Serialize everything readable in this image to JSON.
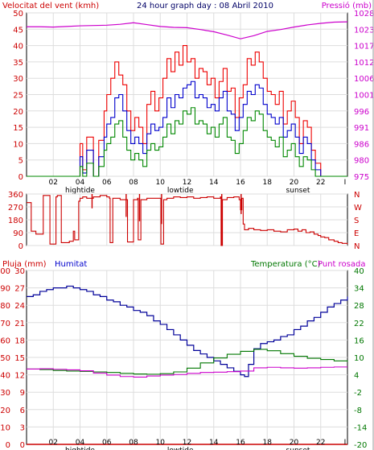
{
  "header": {
    "wind_label": "Velocitat del vent (kmh)",
    "title": "24 hour graph day : 08 Abril 2010",
    "pressure_label": "Pressió (mb)"
  },
  "footer_labels": {
    "pluja": "Pluja (mm)",
    "humitat": "Humitat",
    "temperatura": "Temperatura (°C)",
    "punt_rosada": "Punt rosada"
  },
  "time_ticks": [
    "02",
    "04",
    "06",
    "08",
    "10",
    "12",
    "14",
    "16",
    "18",
    "20",
    "22"
  ],
  "time_end_mark": "I",
  "top_event_labels": {
    "hightide": "hightide",
    "lowtide": "lowtide",
    "sunset": "sunset"
  },
  "bottom_event_labels": {
    "hightide": "hightide",
    "lowtide": "lowtide",
    "sunset": "sunset"
  },
  "compass": [
    "N",
    "W",
    "S",
    "E",
    "N"
  ],
  "colors": {
    "wind_gust": "#ee0000",
    "wind_avg": "#0000cc",
    "wind_green": "#008800",
    "pressure": "#cc00cc",
    "direction": "#cc0000",
    "humidity": "#000099",
    "temperature": "#007700",
    "dewpoint": "#cc00cc",
    "rain": "#cc0000",
    "axis_red": "#cc0000",
    "axis_magenta": "#cc00cc",
    "axis_blue": "#0000cc",
    "axis_green": "#007700",
    "grid": "#dddddd"
  },
  "chart_data": [
    {
      "type": "line",
      "title": "24 hour graph day : 08 Abril 2010",
      "x_unit": "hour",
      "xlim": [
        0,
        24
      ],
      "ylabel_left": "Velocitat del vent (kmh)",
      "ylim_left": [
        0,
        50
      ],
      "yticks_left": [
        "0",
        "5",
        "10",
        "15",
        "20",
        "25",
        "30",
        "35",
        "40",
        "45",
        "50"
      ],
      "ylabel_right": "Pressió (mb)",
      "ylim_right": [
        975,
        1028
      ],
      "yticks_right": [
        "975",
        "980",
        "986",
        "991",
        "996",
        "1001",
        "1006",
        "1012",
        "1017",
        "1023",
        "1028"
      ],
      "series": [
        {
          "key": "gust",
          "axis": "left",
          "x": [
            0,
            2,
            3.8,
            4.0,
            4.2,
            4.5,
            5.0,
            5.4,
            5.8,
            6.0,
            6.3,
            6.6,
            6.9,
            7.2,
            7.5,
            7.8,
            8.1,
            8.4,
            8.7,
            9.0,
            9.3,
            9.6,
            9.9,
            10.2,
            10.5,
            10.8,
            11.1,
            11.4,
            11.7,
            12.0,
            12.3,
            12.6,
            12.9,
            13.2,
            13.5,
            13.8,
            14.1,
            14.4,
            14.7,
            15.0,
            15.3,
            15.6,
            15.9,
            16.2,
            16.5,
            16.8,
            17.1,
            17.4,
            17.7,
            18.0,
            18.3,
            18.6,
            18.9,
            19.2,
            19.5,
            19.8,
            20.1,
            20.4,
            20.7,
            21.0,
            21.3,
            21.6,
            22.0,
            24
          ],
          "values": [
            0,
            0,
            0,
            10,
            2,
            12,
            0,
            11,
            20,
            25,
            30,
            35,
            31,
            28,
            20,
            14,
            18,
            15,
            10,
            22,
            26,
            20,
            24,
            30,
            36,
            32,
            38,
            34,
            40,
            35,
            36,
            30,
            33,
            32,
            28,
            30,
            24,
            29,
            33,
            26,
            27,
            18,
            24,
            28,
            36,
            34,
            38,
            35,
            30,
            26,
            25,
            22,
            26,
            16,
            20,
            23,
            18,
            10,
            17,
            15,
            8,
            4,
            0,
            0
          ]
        },
        {
          "key": "average",
          "axis": "left",
          "x": [
            0,
            2,
            3.8,
            4.0,
            4.2,
            4.5,
            5.0,
            5.4,
            5.8,
            6.0,
            6.3,
            6.6,
            6.9,
            7.2,
            7.5,
            7.8,
            8.1,
            8.4,
            8.7,
            9.0,
            9.3,
            9.6,
            9.9,
            10.2,
            10.5,
            10.8,
            11.1,
            11.4,
            11.7,
            12.0,
            12.3,
            12.6,
            12.9,
            13.2,
            13.5,
            13.8,
            14.1,
            14.4,
            14.7,
            15.0,
            15.3,
            15.6,
            15.9,
            16.2,
            16.5,
            16.8,
            17.1,
            17.4,
            17.7,
            18.0,
            18.3,
            18.6,
            18.9,
            19.2,
            19.5,
            19.8,
            20.1,
            20.4,
            20.7,
            21.0,
            21.3,
            21.6,
            22.0,
            24
          ],
          "values": [
            0,
            0,
            0,
            6,
            1,
            8,
            0,
            6,
            12,
            16,
            18,
            24,
            25,
            20,
            14,
            10,
            12,
            10,
            7,
            13,
            16,
            14,
            15,
            18,
            24,
            21,
            25,
            24,
            27,
            28,
            29,
            24,
            25,
            24,
            21,
            22,
            20,
            24,
            26,
            20,
            19,
            14,
            18,
            22,
            26,
            25,
            28,
            27,
            22,
            19,
            18,
            16,
            18,
            12,
            14,
            16,
            12,
            7,
            12,
            10,
            5,
            2,
            0,
            0
          ]
        },
        {
          "key": "green",
          "axis": "left",
          "x": [
            0,
            2,
            3.8,
            4.0,
            4.2,
            4.5,
            5.0,
            5.4,
            5.8,
            6.0,
            6.3,
            6.6,
            6.9,
            7.2,
            7.5,
            7.8,
            8.1,
            8.4,
            8.7,
            9.0,
            9.3,
            9.6,
            9.9,
            10.2,
            10.5,
            10.8,
            11.1,
            11.4,
            11.7,
            12.0,
            12.3,
            12.6,
            12.9,
            13.2,
            13.5,
            13.8,
            14.1,
            14.4,
            14.7,
            15.0,
            15.3,
            15.6,
            15.9,
            16.2,
            16.5,
            16.8,
            17.1,
            17.4,
            17.7,
            18.0,
            18.3,
            18.6,
            18.9,
            19.2,
            19.5,
            19.8,
            20.1,
            20.4,
            20.7,
            21.0,
            21.3,
            21.6,
            22.0,
            24
          ],
          "values": [
            0,
            0,
            0,
            3,
            0,
            4,
            0,
            3,
            8,
            10,
            12,
            16,
            17,
            12,
            8,
            5,
            7,
            5,
            3,
            8,
            10,
            8,
            9,
            12,
            16,
            13,
            17,
            16,
            20,
            19,
            21,
            16,
            17,
            16,
            13,
            15,
            12,
            16,
            18,
            12,
            11,
            7,
            10,
            14,
            18,
            17,
            20,
            19,
            14,
            12,
            11,
            9,
            12,
            6,
            8,
            10,
            6,
            3,
            6,
            5,
            2,
            0,
            0,
            0
          ]
        },
        {
          "key": "pressure",
          "axis": "right",
          "x": [
            0,
            1,
            2,
            3,
            4,
            5,
            6,
            7,
            8,
            9,
            10,
            11,
            12,
            13,
            14,
            15,
            16,
            17,
            18,
            19,
            20,
            21,
            22,
            23,
            24
          ],
          "values": [
            1023.5,
            1023.5,
            1023.4,
            1023.6,
            1023.8,
            1023.9,
            1024.0,
            1024.3,
            1024.8,
            1024.2,
            1023.6,
            1023.3,
            1023.2,
            1022.6,
            1021.9,
            1020.8,
            1019.6,
            1020.6,
            1022.0,
            1022.6,
            1023.4,
            1024.1,
            1024.6,
            1025.0,
            1025.1
          ]
        }
      ],
      "annotations": [
        "hightide",
        "lowtide",
        "sunset"
      ]
    },
    {
      "type": "line",
      "x_unit": "hour",
      "xlim": [
        0,
        24
      ],
      "ylim": [
        0,
        360
      ],
      "yticks": [
        "0",
        "90",
        "180",
        "270",
        "360"
      ],
      "yticks_right": [
        "N",
        "W",
        "S",
        "E",
        "N"
      ],
      "series": [
        {
          "key": "direction",
          "x": [
            0,
            0.3,
            0.35,
            0.7,
            1.0,
            1.2,
            1.25,
            1.4,
            1.7,
            1.75,
            2.2,
            2.3,
            2.4,
            2.6,
            2.65,
            3.0,
            3.2,
            3.5,
            3.6,
            3.9,
            4.0,
            4.2,
            4.5,
            5.0,
            5.5,
            6.0,
            6.2,
            6.25,
            6.4,
            6.45,
            7.0,
            7.5,
            7.55,
            8.0,
            8.3,
            8.35,
            8.5,
            8.55,
            9.0,
            9.5,
            10.0,
            10.05,
            10.2,
            10.25,
            10.5,
            11.0,
            11.5,
            12.0,
            12.5,
            13.0,
            13.5,
            14.0,
            14.5,
            14.55,
            14.6,
            14.65,
            15.0,
            15.5,
            15.9,
            16.0,
            16.1,
            16.2,
            16.3,
            16.6,
            17.0,
            17.5,
            18.0,
            18.5,
            19.0,
            19.5,
            20.0,
            20.3,
            20.6,
            20.9,
            21.2,
            21.5,
            21.8,
            22.0,
            22.3,
            22.6,
            23.0,
            23.3,
            23.6,
            24
          ],
          "values": [
            300,
            300,
            100,
            80,
            80,
            80,
            350,
            350,
            350,
            10,
            340,
            350,
            350,
            20,
            20,
            20,
            30,
            100,
            40,
            310,
            330,
            340,
            330,
            340,
            350,
            340,
            330,
            20,
            20,
            330,
            320,
            320,
            25,
            320,
            330,
            40,
            40,
            320,
            330,
            330,
            330,
            10,
            10,
            320,
            330,
            340,
            335,
            340,
            330,
            335,
            340,
            330,
            340,
            0,
            0,
            320,
            335,
            340,
            320,
            250,
            330,
            150,
            110,
            120,
            110,
            105,
            110,
            100,
            95,
            110,
            115,
            100,
            110,
            90,
            95,
            80,
            70,
            60,
            55,
            40,
            30,
            20,
            15,
            10
          ]
        },
        {
          "key": "direction_spikes",
          "x": [
            4.9,
            7.45,
            8.45,
            10.1,
            14.6,
            16.05
          ],
          "values": [
            260,
            200,
            170,
            150,
            0,
            220
          ]
        }
      ]
    },
    {
      "type": "line",
      "x_unit": "hour",
      "xlim": [
        0,
        24
      ],
      "ylabel_left": "Pluja (mm)",
      "ylim_left": [
        0,
        100
      ],
      "yticks_left": [
        "0",
        "10",
        "20",
        "30",
        "40",
        "50",
        "60",
        "70",
        "80",
        "90",
        "100"
      ],
      "ylabel_left2": "Humitat",
      "yticks_left2": [
        "0",
        "3",
        "6",
        "9",
        "12",
        "15",
        "18",
        "21",
        "24",
        "27",
        "30"
      ],
      "ylabel_right": "Temperatura (°C)",
      "ylabel_right2": "Punt rosada",
      "ylim_right": [
        -20,
        40
      ],
      "yticks_right": [
        "-20",
        "-14",
        "-8",
        "-2",
        "4",
        "10",
        "16",
        "22",
        "28",
        "34",
        "40"
      ],
      "series": [
        {
          "key": "humidity",
          "axis": "left",
          "x": [
            0,
            0.5,
            1,
            1.5,
            2,
            2.5,
            3,
            3.5,
            4,
            4.5,
            5,
            5.5,
            6,
            6.5,
            7,
            7.5,
            8,
            8.5,
            9,
            9.5,
            10,
            10.5,
            11,
            11.5,
            12,
            12.5,
            13,
            13.5,
            14,
            14.5,
            15,
            15.5,
            16,
            16.3,
            16.6,
            17,
            17.5,
            18,
            18.5,
            19,
            19.5,
            20,
            20.5,
            21,
            21.5,
            22,
            22.5,
            23,
            23.5,
            24
          ],
          "values": [
            85,
            86,
            88,
            89,
            90,
            90,
            91,
            90,
            89,
            88,
            86,
            85,
            83,
            82,
            80,
            79,
            77,
            76,
            74,
            71,
            69,
            66,
            63,
            60,
            57,
            54,
            52,
            50,
            48,
            46,
            44,
            42,
            40,
            39,
            46,
            55,
            58,
            59,
            60,
            62,
            63,
            66,
            68,
            71,
            73,
            76,
            79,
            81,
            83,
            85
          ]
        },
        {
          "key": "temperature",
          "axis": "right",
          "x": [
            0,
            1,
            2,
            3,
            4,
            5,
            6,
            7,
            8,
            9,
            10,
            11,
            12,
            13,
            14,
            15,
            16,
            17,
            18,
            19,
            20,
            21,
            22,
            23,
            24
          ],
          "values": [
            6,
            5.8,
            5.5,
            5.3,
            5.2,
            5.0,
            4.8,
            4.5,
            4.3,
            4.2,
            4.4,
            5,
            6.3,
            8.1,
            9.8,
            11.1,
            12.1,
            12.8,
            12.3,
            11.3,
            10.4,
            9.7,
            9.3,
            8.8,
            8.5
          ]
        },
        {
          "key": "dewpoint",
          "axis": "right",
          "x": [
            0,
            1,
            2,
            3,
            4,
            5,
            6,
            7,
            8,
            9,
            10,
            11,
            12,
            13,
            14,
            15,
            16,
            17,
            18,
            19,
            20,
            21,
            22,
            23,
            24
          ],
          "values": [
            6.0,
            6.1,
            5.9,
            5.7,
            5.4,
            4.6,
            3.9,
            3.4,
            3.2,
            3.6,
            3.9,
            4.1,
            4.5,
            4.8,
            4.9,
            5.1,
            5.3,
            6.4,
            6.6,
            6.4,
            6.3,
            6.4,
            6.6,
            6.7,
            6.7
          ]
        },
        {
          "key": "rain",
          "axis": "left",
          "x": [
            0,
            24
          ],
          "values": [
            0,
            0
          ]
        }
      ],
      "annotations": [
        "hightide",
        "lowtide",
        "sunset"
      ]
    }
  ]
}
